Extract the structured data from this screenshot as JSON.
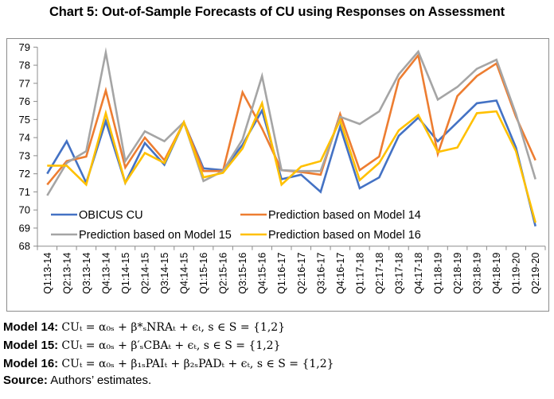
{
  "title": "Chart 5: Out-of-Sample Forecasts of CU using Responses on Assessment",
  "chart_data": {
    "type": "line",
    "title": "Chart 5: Out-of-Sample Forecasts of CU using Responses on Assessment",
    "xlabel": "",
    "ylabel": "",
    "ylim": [
      68,
      79
    ],
    "yticks": [
      68,
      69,
      70,
      71,
      72,
      73,
      74,
      75,
      76,
      77,
      78,
      79
    ],
    "grid": false,
    "legend_position": "bottom-inside",
    "categories": [
      "Q1:13-14",
      "Q2:13-14",
      "Q3:13-14",
      "Q4:13-14",
      "Q1:14-15",
      "Q2:14-15",
      "Q3:14-15",
      "Q4:14-15",
      "Q1:15-16",
      "Q2:15-16",
      "Q3:15-16",
      "Q4:15-16",
      "Q1:16-17",
      "Q2:16-17",
      "Q3:16-17",
      "Q4:16-17",
      "Q1:17-18",
      "Q2:17-18",
      "Q3:17-18",
      "Q4:17-18",
      "Q1:18-19",
      "Q2:18-19",
      "Q3:18-19",
      "Q4:18-19",
      "Q1:19-20",
      "Q2:19-20"
    ],
    "series": [
      {
        "name": "OBICUS CU",
        "color": "#4472c4",
        "values": [
          72.0,
          73.8,
          71.5,
          74.9,
          71.5,
          73.7,
          72.5,
          74.85,
          72.3,
          72.2,
          73.6,
          75.5,
          71.7,
          71.95,
          71.0,
          74.6,
          71.2,
          71.8,
          74.1,
          75.1,
          73.8,
          74.85,
          75.9,
          76.05,
          73.45,
          69.1
        ]
      },
      {
        "name": "Prediction based on Model 14",
        "color": "#ed7d31",
        "values": [
          71.4,
          72.7,
          72.95,
          76.6,
          72.35,
          74.0,
          72.75,
          74.85,
          72.15,
          72.15,
          76.5,
          74.5,
          72.2,
          72.1,
          71.95,
          75.3,
          72.2,
          72.95,
          77.2,
          78.55,
          73.1,
          76.3,
          77.4,
          78.1,
          75.15,
          72.75
        ]
      },
      {
        "name": "Prediction based on Model 15",
        "color": "#a5a5a5",
        "values": [
          70.8,
          72.6,
          73.25,
          78.7,
          72.7,
          74.35,
          73.8,
          74.85,
          71.6,
          72.15,
          73.9,
          77.4,
          72.2,
          72.15,
          72.15,
          75.15,
          74.75,
          75.45,
          77.5,
          78.75,
          76.1,
          76.8,
          77.8,
          78.3,
          75.3,
          71.7
        ]
      },
      {
        "name": "Prediction based on Model 16",
        "color": "#ffc000",
        "values": [
          72.45,
          72.45,
          71.4,
          75.35,
          71.5,
          73.15,
          72.6,
          74.85,
          71.8,
          72.05,
          73.4,
          75.9,
          71.4,
          72.4,
          72.7,
          74.95,
          71.65,
          72.6,
          74.4,
          75.25,
          73.2,
          73.45,
          75.35,
          75.45,
          73.25,
          69.3
        ]
      }
    ]
  },
  "notes": [
    {
      "label": "Model 14:",
      "equation": "CUₜ = α₀ₛ +  β*ₛNRAₜ + ϵₜ, s ∈ S = {1,2}"
    },
    {
      "label": "Model 15:",
      "equation": "CUₜ = α₀ₛ + β′ₛCBAₜ + ϵₜ, s ∈ S = {1,2}"
    },
    {
      "label": "Model 16:",
      "equation": "CUₜ = α₀ₛ +  β₁ₛPAIₜ + β₂ₛPADₜ + ϵₜ, s ∈ S = {1,2}"
    }
  ],
  "source": {
    "label": "Source:",
    "text": " Authors’ estimates."
  }
}
